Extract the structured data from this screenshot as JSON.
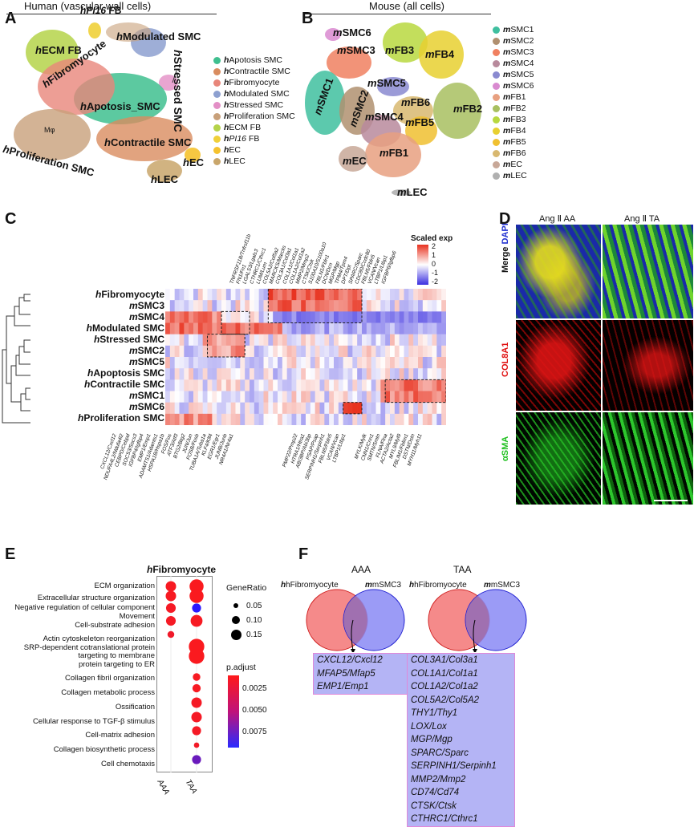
{
  "panels": {
    "A": {
      "letter": "A",
      "title": "Human (vascular wall cells)",
      "clusters": [
        {
          "name": "hApotosis SMC",
          "display": "hApotosis_SMC",
          "color": "#3fbf8f"
        },
        {
          "name": "hContractile SMC",
          "display": "hContractile SMC",
          "color": "#d98c5f"
        },
        {
          "name": "hFibromyocyte",
          "display": "hFibromyocyte",
          "color": "#e8867a"
        },
        {
          "name": "hModulated SMC",
          "display": "hModulated SMC",
          "color": "#8da0d0"
        },
        {
          "name": "hStressed SMC",
          "display": "hStressed SMC",
          "color": "#e38fc6"
        },
        {
          "name": "hProliferation SMC",
          "display": "hProliferation SMC",
          "color": "#c8a07a"
        },
        {
          "name": "hECM FB",
          "display": "hECM FB",
          "color": "#b5d34a"
        },
        {
          "name": "hPI16 FB",
          "display": "hPI16 FB",
          "color": "#f0d03a"
        },
        {
          "name": "hEC",
          "display": "hEC",
          "color": "#f5c22e"
        },
        {
          "name": "hLEC",
          "display": "hLEC",
          "color": "#c9a66b"
        }
      ],
      "legend": [
        "hApotosis SMC",
        "hContractile SMC",
        "hFibromyocyte",
        "hModulated SMC",
        "hStressed SMC",
        "hProliferation SMC",
        "hECM FB",
        "hPI16 FB",
        "hEC",
        "hLEC"
      ],
      "extra_label": "Mφ"
    },
    "B": {
      "letter": "B",
      "title": "Mouse (all cells)",
      "legend": [
        {
          "name": "mSMC1",
          "color": "#3fbf9f"
        },
        {
          "name": "mSMC2",
          "color": "#b09070"
        },
        {
          "name": "mSMC3",
          "color": "#f08060"
        },
        {
          "name": "mSMC4",
          "color": "#b88a9c"
        },
        {
          "name": "mSMC5",
          "color": "#8a8ad0"
        },
        {
          "name": "mSMC6",
          "color": "#d98ad0"
        },
        {
          "name": "mFB1",
          "color": "#e8a080"
        },
        {
          "name": "mFB2",
          "color": "#a8c060"
        },
        {
          "name": "mFB3",
          "color": "#b8d840"
        },
        {
          "name": "mFB4",
          "color": "#e8d030"
        },
        {
          "name": "mFB5",
          "color": "#f0c030"
        },
        {
          "name": "mFB6",
          "color": "#d8b870"
        },
        {
          "name": "mEC",
          "color": "#c8a898"
        },
        {
          "name": "mLEC",
          "color": "#b0b0b0"
        }
      ]
    },
    "C": {
      "letter": "C",
      "legend_title": "Scaled exp",
      "legend_ticks": [
        "2",
        "1",
        "0",
        "-1",
        "-2"
      ],
      "rows": [
        "hFibromyocyte",
        "mSMC3",
        "mSMC4",
        "hModulated SMC",
        "hStressed SMC",
        "mSMC2",
        "mSMC5",
        "hApoptosis SMC",
        "hContractile SMC",
        "mSMC1",
        "mSMC6",
        "hProliferation SMC"
      ],
      "top_genes": [
        "TNFRSF11B/Tnfrsf11b",
        "FN1/Fn1",
        "LGALS3/Lgals3",
        "CTHRC1/Cthrc1",
        "LUM/Lum",
        "COL5A2/Col5a2",
        "MARCKS/Marcks",
        "COL3A1/Col3a1",
        "COL1A1/Col1a1",
        "COL1A2/Col1a2",
        "MMP2/Mmp2",
        "CTSK/Ctsk",
        "S100A10/S100a10",
        "FBLN1/Fbln1",
        "DCN/Dcn",
        "MGP/Mgp",
        "TPM4/Tpm4",
        "DPT/Dpt",
        "SPARC/Sparc",
        "CDC80/Ccdc80",
        "FBLN5/Fbln5",
        "VCAN/Vcan",
        "LTBP1/Ltbp1",
        "IGFBP6/Igfbp6"
      ],
      "bottom_genes": [
        "CXCL12/Cxcl12",
        "NDUFA4L2/Ndufa4l2",
        "CEBPD/Cebpd",
        "SOCS3/Socs3",
        "IGFBP4/Igfbp4",
        "EMP1/Emp1",
        "ADAMTS1/Adamts1",
        "HSPA1B/Hspa1b",
        "FOS/Fos",
        "ATF3/Atf3",
        "BTG2/Btg2",
        "JUN/Jun",
        "FOSB/Fosb",
        "TUBA1A/Tuba1a",
        "KLF4/Klf4",
        "EGR1/Egr1",
        "JUNB/Junb",
        "NR4A1/Nr4a1",
        "PMP22/Pmp22",
        "HTRA1/Htra1",
        "ABI3BP/Abi3bp",
        "PSAP/Psap",
        "SERPINH1/Serpinh1",
        "FBLN5/Fbln5",
        "VCAN/Vcan",
        "LTBP1/Ltbp1",
        "MYLK/Mylk",
        "CNN1/Cnn1",
        "SMTN/Smtn",
        "FLNA/Flna",
        "ACTA2/Acta2",
        "MYL9/Myl9",
        "FBLIM1/Fblim1",
        "DSTN/Dstn",
        "MYH11/Myh11"
      ]
    },
    "D": {
      "letter": "D",
      "col_titles": [
        "Ang Ⅱ AA",
        "Ang Ⅱ TA"
      ],
      "row_labels": [
        {
          "text": "Merge",
          "color": "#111111"
        },
        {
          "text": "DAPI",
          "color": "#2030d0"
        },
        {
          "text": "COL8A1",
          "color": "#e01010"
        },
        {
          "text": "αSMA",
          "color": "#20c020"
        }
      ]
    },
    "E": {
      "letter": "E",
      "title": "hFibromyocyte",
      "terms": [
        "ECM organization",
        "Extracellular structure organization",
        "Negative regulation of cellular component",
        "Movement",
        "Cell-substrate adhesion",
        "Actin cytoskeleton reorganization",
        "SRP-dependent cotranslational protein",
        "targeting to membrane",
        "protein targeting to ER",
        "Collagen fibril organization",
        "Collagen metabolic process",
        "Ossification",
        "Cellular response to TGF-β stimulus",
        "Cell-matrix adhesion",
        "Collagen biosynthetic process",
        "Cell chemotaxis"
      ],
      "x_labels": [
        "AAA",
        "TAA"
      ],
      "generatio_title": "GeneRatio",
      "generatio_ticks": [
        "0.05",
        "0.10",
        "0.15"
      ],
      "padj_title": "p.adjust",
      "padj_ticks": [
        "0.0025",
        "0.0050",
        "0.0075"
      ],
      "dots": [
        {
          "term": "ECM organization",
          "AAA": 0.1,
          "TAA": 0.15,
          "AAA_p": 0.0003,
          "TAA_p": 0.0002
        },
        {
          "term": "Extracellular structure organization",
          "AAA": 0.1,
          "TAA": 0.15,
          "AAA_p": 0.0003,
          "TAA_p": 0.0002
        },
        {
          "term": "Negative regulation of cellular component Movement",
          "AAA": 0.09,
          "TAA": 0.08,
          "AAA_p": 0.0004,
          "TAA_p": 0.0085
        },
        {
          "term": "Cell-substrate adhesion",
          "AAA": 0.09,
          "TAA": 0.12,
          "AAA_p": 0.0004,
          "TAA_p": 0.0003
        },
        {
          "term": "Actin cytoskeleton reorganization",
          "AAA": 0.05,
          "TAA": null,
          "AAA_p": 0.0006,
          "TAA_p": null
        },
        {
          "term": "SRP-dependent cotranslational protein targeting to membrane",
          "AAA": null,
          "TAA": 0.17,
          "AAA_p": null,
          "TAA_p": 0.0002
        },
        {
          "term": "protein targeting to ER",
          "AAA": null,
          "TAA": 0.17,
          "AAA_p": null,
          "TAA_p": 0.0002
        },
        {
          "term": "Collagen fibril organization",
          "AAA": null,
          "TAA": 0.06,
          "AAA_p": null,
          "TAA_p": 0.0003
        },
        {
          "term": "Collagen metabolic process",
          "AAA": null,
          "TAA": 0.07,
          "AAA_p": null,
          "TAA_p": 0.0003
        },
        {
          "term": "Ossification",
          "AAA": null,
          "TAA": 0.1,
          "AAA_p": null,
          "TAA_p": 0.0004
        },
        {
          "term": "Cellular response to TGF-β stimulus",
          "AAA": null,
          "TAA": 0.1,
          "AAA_p": null,
          "TAA_p": 0.0004
        },
        {
          "term": "Cell-matrix adhesion",
          "AAA": null,
          "TAA": 0.08,
          "AAA_p": null,
          "TAA_p": 0.0004
        },
        {
          "term": "Collagen biosynthetic process",
          "AAA": null,
          "TAA": 0.03,
          "AAA_p": null,
          "TAA_p": 0.0005
        },
        {
          "term": "Cell chemotaxis",
          "AAA": null,
          "TAA": 0.08,
          "AAA_p": null,
          "TAA_p": 0.006
        }
      ]
    },
    "F": {
      "letter": "F",
      "aaa": {
        "title": "AAA",
        "left": "hFibromyocyte",
        "right": "mSMC3",
        "genes": [
          "CXCL12/Cxcl12",
          "MFAP5/Mfap5",
          "EMP1/Emp1"
        ]
      },
      "taa": {
        "title": "TAA",
        "left": "hFibromyocyte",
        "right": "mSMC3",
        "genes": [
          "COL3A1/Col3a1",
          "COL1A1/Col1a1",
          "COL1A2/Col1a2",
          "COL5A2/Col5A2",
          "THY1/Thy1",
          "LOX/Lox",
          "MGP/Mgp",
          "SPARC/Sparc",
          "SERPINH1/Serpinh1",
          "MMP2/Mmp2",
          "CD74/Cd74",
          "CTSK/Ctsk",
          "CTHRC1/Cthrc1"
        ]
      }
    }
  }
}
